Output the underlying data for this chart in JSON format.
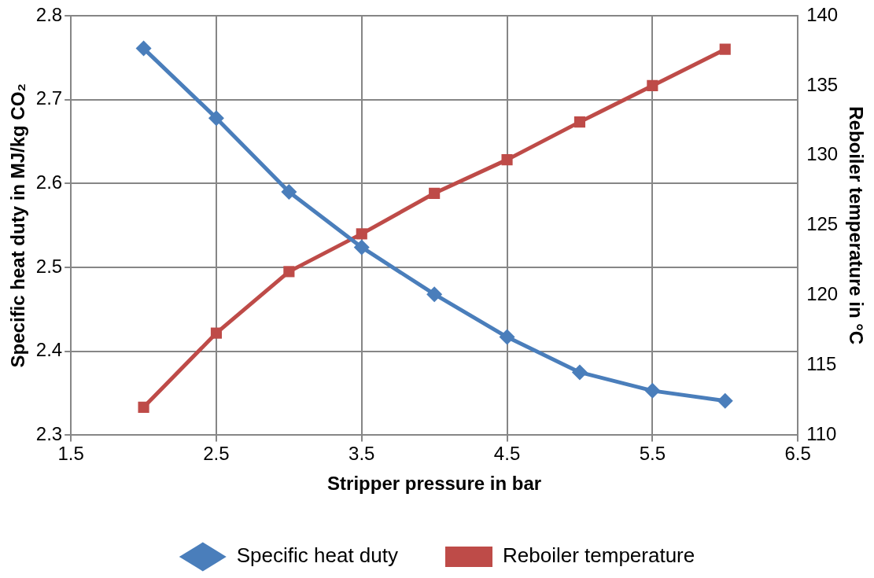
{
  "chart_data": {
    "type": "line",
    "xlabel": "Stripper pressure in bar",
    "ylabel": "Specific heat duty in MJ/kg CO₂",
    "y2label": "Reboiler temperature in °C",
    "x": [
      2,
      2.5,
      3,
      3.5,
      4,
      4.5,
      5,
      5.5,
      6
    ],
    "series": [
      {
        "name": "Specific heat duty",
        "color": "#4a7ebb",
        "marker": "diamond",
        "values": [
          2.761,
          2.678,
          2.59,
          2.524,
          2.468,
          2.417,
          2.375,
          2.353,
          2.341
        ]
      },
      {
        "name": "Reboiler temperature",
        "color": "#be4b48",
        "marker": "square",
        "axis": "y2",
        "values": [
          112.0,
          117.3,
          121.7,
          124.4,
          127.3,
          129.7,
          132.4,
          135.0,
          137.6
        ]
      }
    ],
    "xlim": [
      1.5,
      6.5
    ],
    "xticks": [
      1.5,
      2.5,
      3.5,
      4.5,
      5.5,
      6.5
    ],
    "ylim": [
      2.3,
      2.8
    ],
    "yticks": [
      2.3,
      2.4,
      2.5,
      2.6,
      2.7,
      2.8
    ],
    "y2lim": [
      110,
      140
    ],
    "y2ticks": [
      110,
      115,
      120,
      125,
      130,
      135,
      140
    ],
    "grid": true,
    "legend": "bottom",
    "line_style": "solid"
  }
}
